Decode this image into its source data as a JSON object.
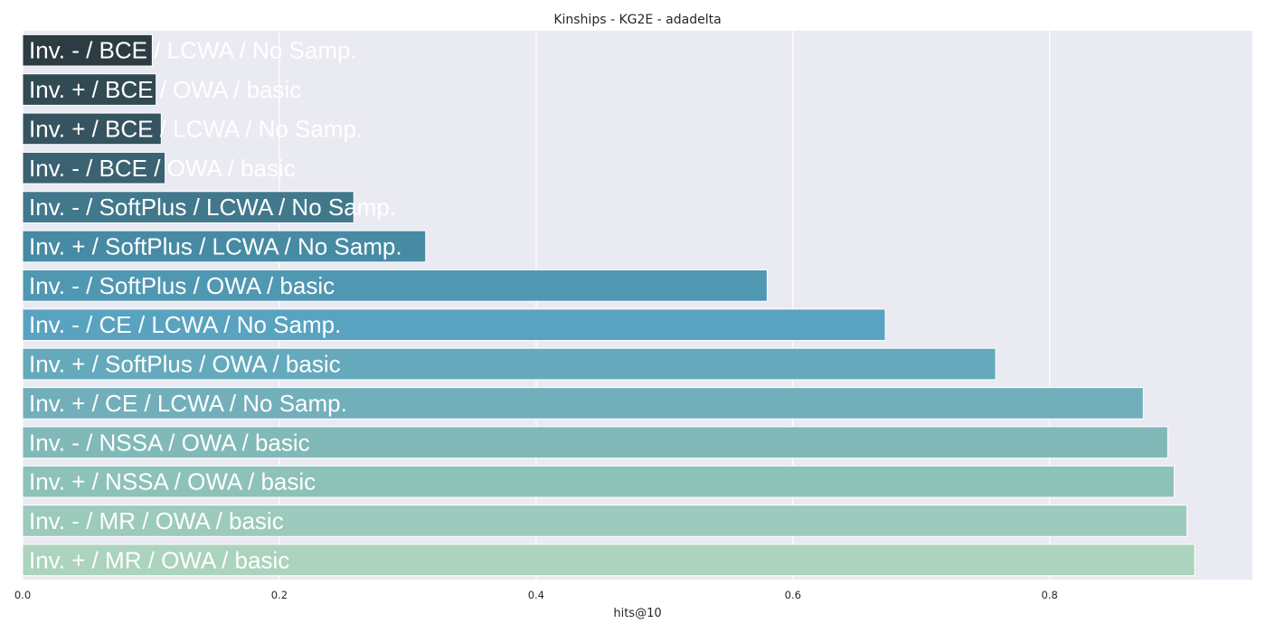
{
  "chart_data": {
    "type": "bar",
    "orientation": "horizontal",
    "title": "Kinships - KG2E - adadelta",
    "xlabel": "hits@10",
    "ylabel": "",
    "xlim": [
      0,
      0.958
    ],
    "xticks": [
      0.0,
      0.2,
      0.4,
      0.6,
      0.8
    ],
    "xtick_labels": [
      "0.0",
      "0.2",
      "0.4",
      "0.6",
      "0.8"
    ],
    "grid": true,
    "legend": "none",
    "background_color": "#eaeaf2",
    "categories": [
      "Inv. - / BCE / LCWA / No Samp.",
      "Inv. + / BCE / OWA / basic",
      "Inv. + / BCE / LCWA / No Samp.",
      "Inv. - / BCE / OWA / basic",
      "Inv. - / SoftPlus / LCWA / No Samp.",
      "Inv. + / SoftPlus / LCWA / No Samp.",
      "Inv. - / SoftPlus / OWA / basic",
      "Inv. - / CE / LCWA / No Samp.",
      "Inv. + / SoftPlus / OWA / basic",
      "Inv. + / CE / LCWA / No Samp.",
      "Inv. - / NSSA / OWA / basic",
      "Inv. + / NSSA / OWA / basic",
      "Inv. - / MR / OWA / basic",
      "Inv. + / MR / OWA / basic"
    ],
    "values": [
      0.101,
      0.104,
      0.108,
      0.111,
      0.258,
      0.314,
      0.58,
      0.672,
      0.758,
      0.873,
      0.892,
      0.897,
      0.907,
      0.913
    ],
    "colors": [
      "#2d3c43",
      "#324a52",
      "#36545f",
      "#3b6270",
      "#41788c",
      "#468aa3",
      "#5097b2",
      "#59a3c0",
      "#65a9bd",
      "#72afbb",
      "#80b9b7",
      "#8dc2b8",
      "#9ccabc",
      "#abd3be"
    ]
  }
}
